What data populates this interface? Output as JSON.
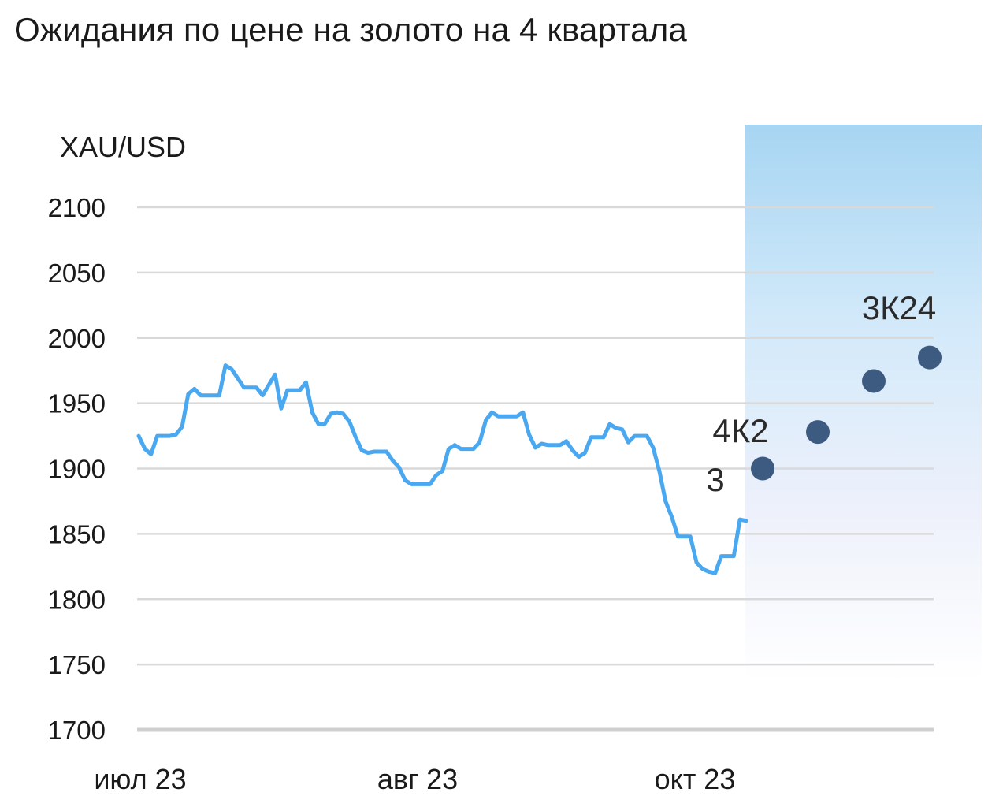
{
  "chart_data": {
    "type": "line",
    "title": "Ожидания по цене на золото на 4 квартала",
    "ylabel": "XAU/USD",
    "ylim": [
      1700,
      2100
    ],
    "yticks": [
      2100,
      2050,
      2000,
      1950,
      1900,
      1850,
      1800,
      1750,
      1700
    ],
    "xtick_labels": [
      "июл 23",
      "авг 23",
      "окт 23"
    ],
    "grid": true,
    "series": [
      {
        "values": [
          1925,
          1915,
          1911,
          1925,
          1925,
          1925,
          1926,
          1932,
          1957,
          1961,
          1956,
          1956,
          1956,
          1956,
          1979,
          1976,
          1969,
          1962,
          1962,
          1962,
          1956,
          1964,
          1972,
          1946,
          1960,
          1960,
          1960,
          1966,
          1943,
          1934,
          1934,
          1942,
          1943,
          1942,
          1936,
          1924,
          1914,
          1912,
          1913,
          1913,
          1913,
          1906,
          1901,
          1891,
          1888,
          1888,
          1888,
          1888,
          1895,
          1898,
          1915,
          1918,
          1915,
          1915,
          1915,
          1920,
          1937,
          1943,
          1940,
          1940,
          1940,
          1940,
          1943,
          1926,
          1916,
          1919,
          1918,
          1918,
          1918,
          1921,
          1914,
          1909,
          1912,
          1924,
          1924,
          1924,
          1934,
          1931,
          1930,
          1920,
          1925,
          1925,
          1925,
          1916,
          1898,
          1875,
          1863,
          1848,
          1848,
          1848,
          1828,
          1823,
          1821,
          1820,
          1833,
          1833,
          1833,
          1861,
          1860
        ]
      }
    ],
    "forecast": {
      "shaded_region": true,
      "points": [
        {
          "label": "4К23",
          "value": 1900
        },
        {
          "label": "",
          "value": 1928
        },
        {
          "label": "",
          "value": 1967
        },
        {
          "label": "3К24",
          "value": 1985
        }
      ]
    },
    "colors": {
      "line": "#4aa8f0",
      "forecast_dot": "#3d5a80",
      "grid": "#d9d9d9",
      "axis": "#cfcfcf",
      "shade_top": "#a9d6f2",
      "shade_bottom": "#ffffff"
    }
  }
}
